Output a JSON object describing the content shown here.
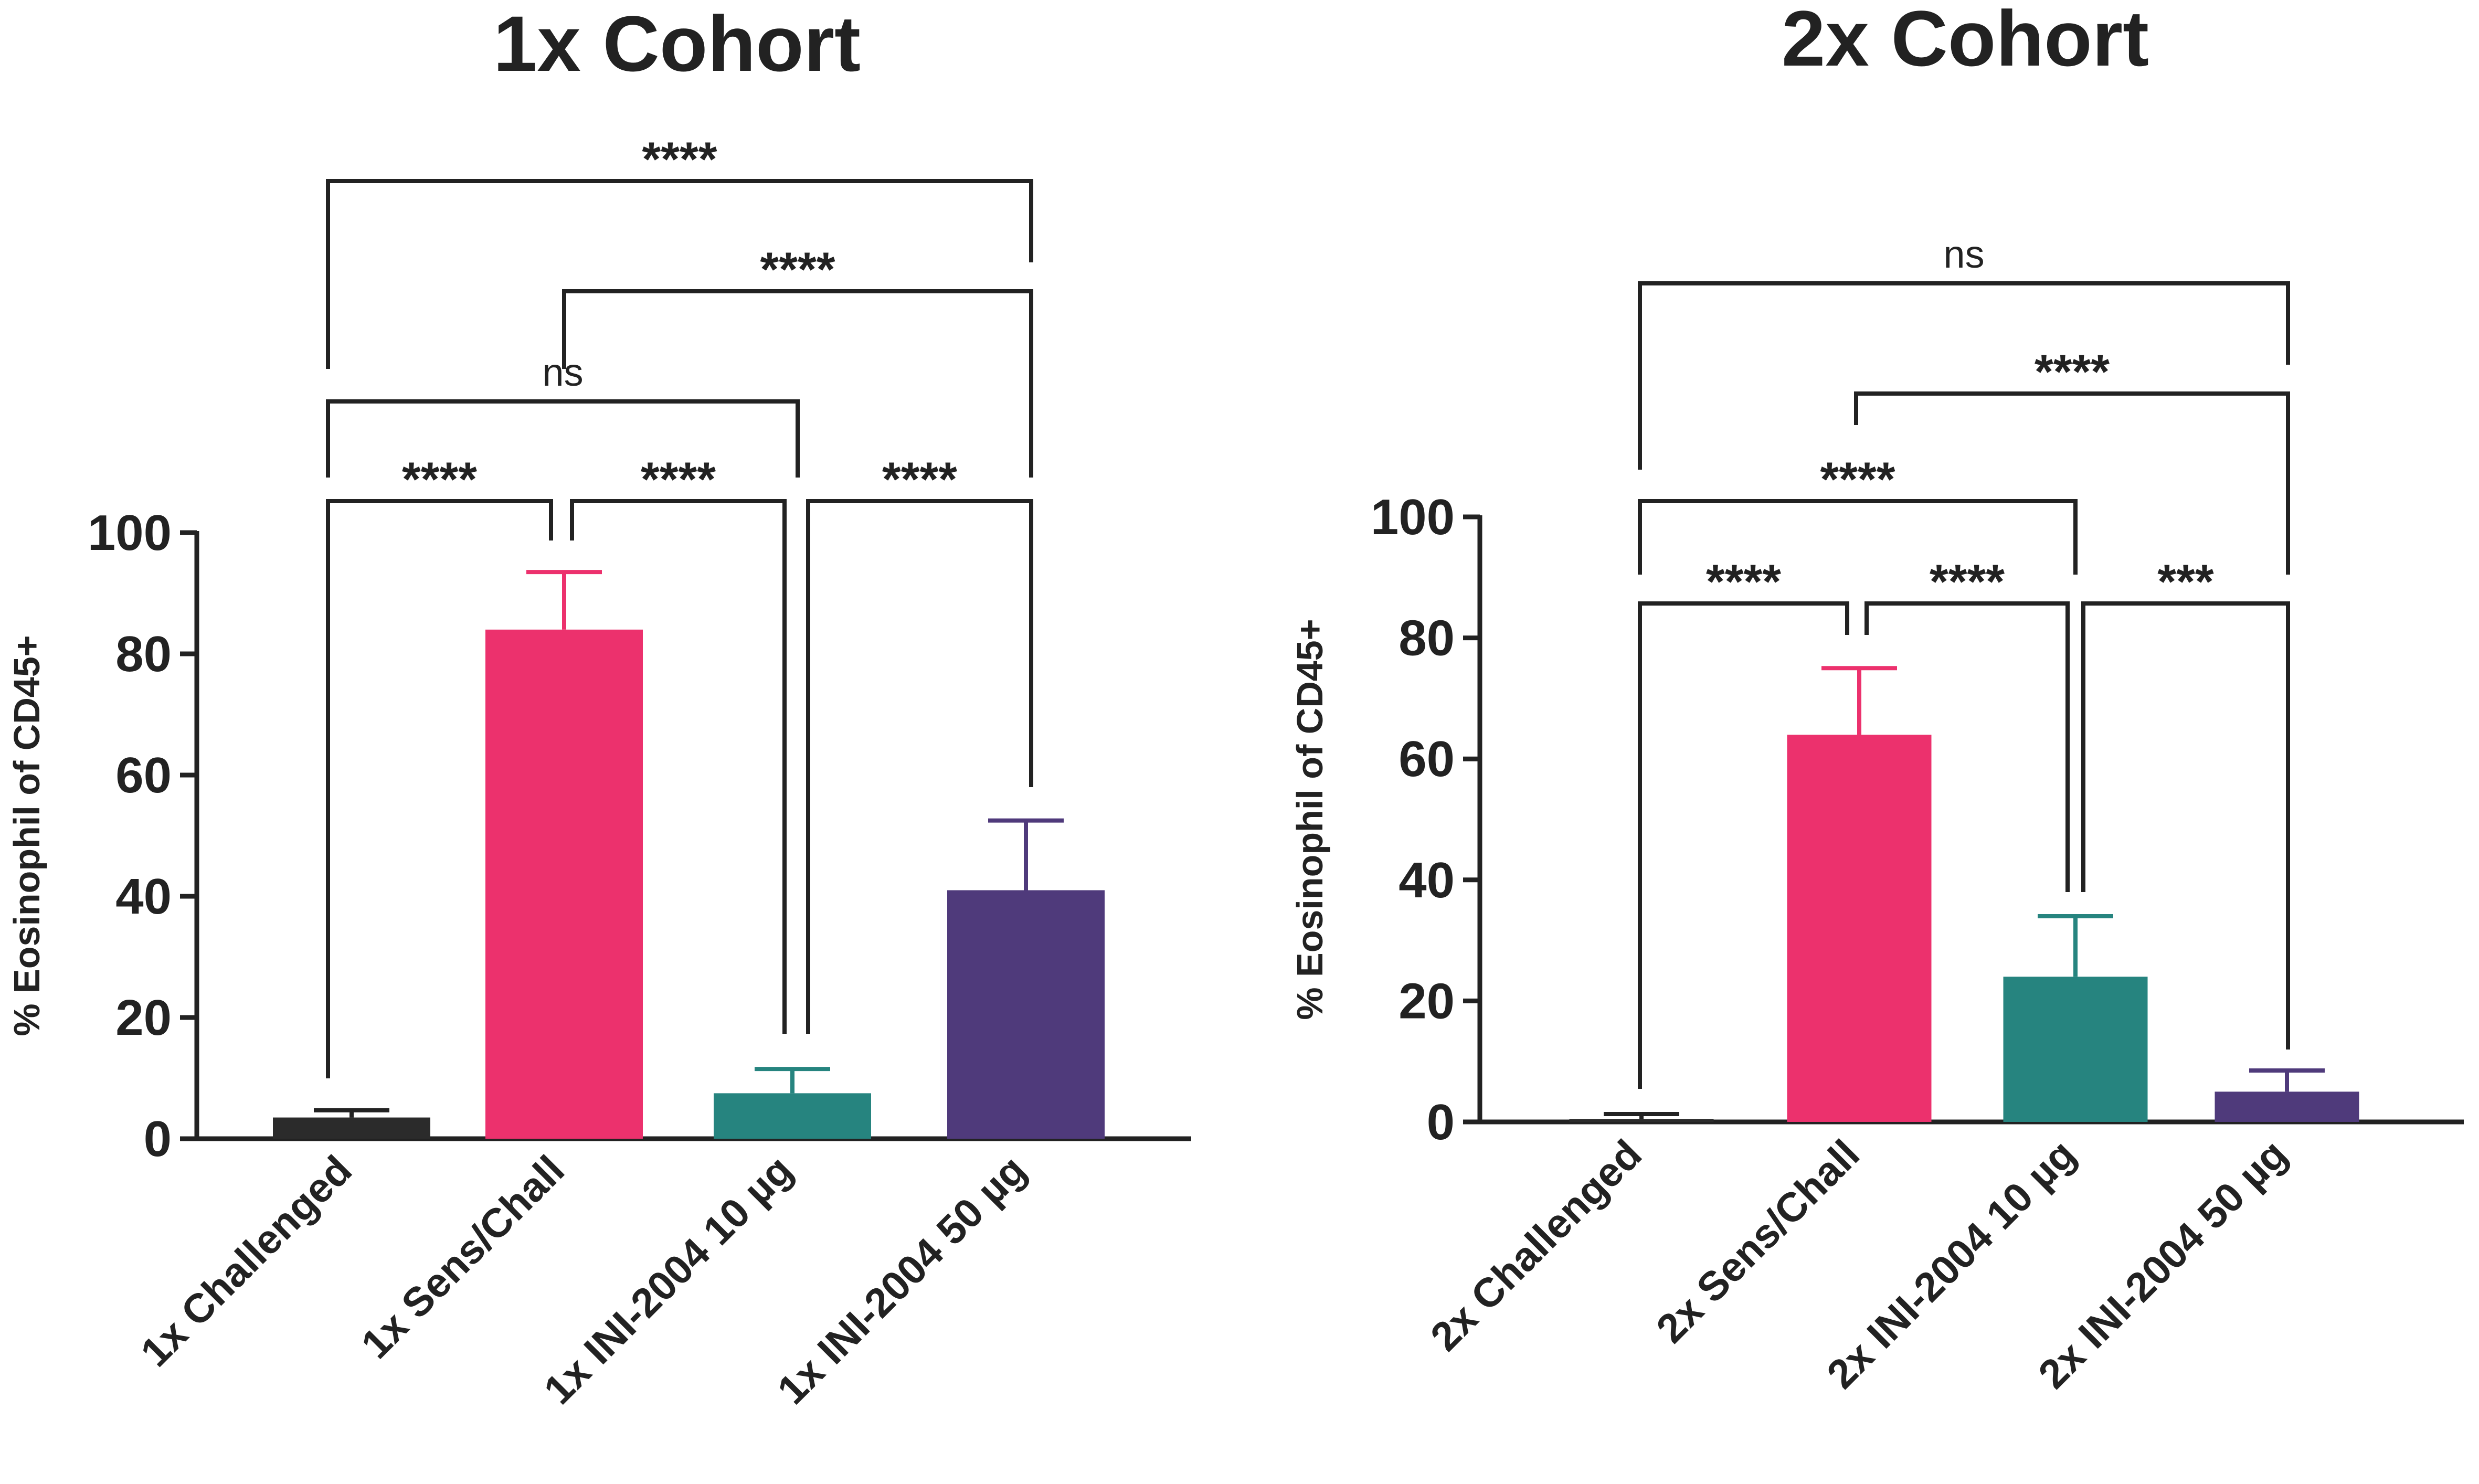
{
  "chart_data": [
    {
      "type": "bar",
      "title": "1x Cohort",
      "ylabel": "% Eosinophil of CD45+",
      "xlabel": "",
      "ylim": [
        0,
        100
      ],
      "yticks": [
        0,
        20,
        40,
        60,
        80,
        100
      ],
      "grid": false,
      "categories": [
        "1x Challenged",
        "1x Sens/Chall",
        "1x INI-2004 10 µg",
        "1x INI-2004 50 µg"
      ],
      "values": [
        3.5,
        84,
        7.5,
        41
      ],
      "errors": [
        1.2,
        9.5,
        4,
        11.5
      ],
      "colors": [
        "#2b2b2b",
        "#ec316d",
        "#26847f",
        "#4f3a7b"
      ],
      "comparisons": [
        {
          "from": 0,
          "to": 1,
          "label": "****"
        },
        {
          "from": 1,
          "to": 2,
          "label": "****"
        },
        {
          "from": 2,
          "to": 3,
          "label": "****"
        },
        {
          "from": 0,
          "to": 2,
          "label": "ns"
        },
        {
          "from": 1,
          "to": 3,
          "label": "****"
        },
        {
          "from": 0,
          "to": 3,
          "label": "****"
        }
      ]
    },
    {
      "type": "bar",
      "title": "2x Cohort",
      "ylabel": "% Eosinophil of CD45+",
      "xlabel": "",
      "ylim": [
        0,
        100
      ],
      "yticks": [
        0,
        20,
        40,
        60,
        80,
        100
      ],
      "grid": false,
      "categories": [
        "2x Challenged",
        "2x Sens/Chall",
        "2x INI-2004 10 µg",
        "2x INI-2004 50 µg"
      ],
      "values": [
        0.5,
        64,
        24,
        5
      ],
      "errors": [
        0.8,
        11,
        10,
        3.5
      ],
      "colors": [
        "#2b2b2b",
        "#ec316d",
        "#26847f",
        "#4f3a7b"
      ],
      "comparisons": [
        {
          "from": 0,
          "to": 1,
          "label": "****"
        },
        {
          "from": 1,
          "to": 2,
          "label": "****"
        },
        {
          "from": 2,
          "to": 3,
          "label": "***"
        },
        {
          "from": 0,
          "to": 2,
          "label": "****"
        },
        {
          "from": 1,
          "to": 3,
          "label": "****"
        },
        {
          "from": 0,
          "to": 3,
          "label": "ns"
        }
      ]
    }
  ]
}
